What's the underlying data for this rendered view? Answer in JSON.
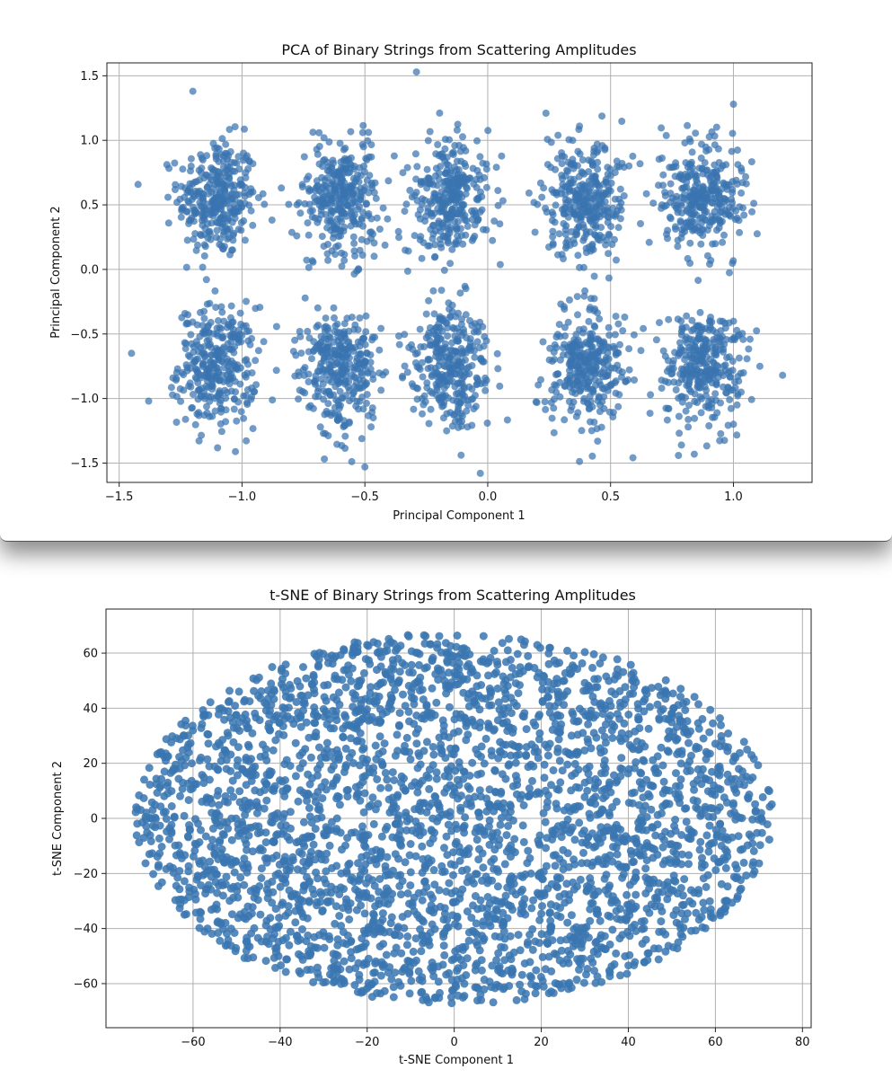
{
  "chart_data": [
    {
      "type": "scatter",
      "title": "PCA of Binary Strings from Scattering Amplitudes",
      "xlabel": "Principal Component 1",
      "ylabel": "Principal Component 2",
      "xlim": [
        -1.55,
        1.32
      ],
      "ylim": [
        -1.65,
        1.6
      ],
      "xticks": [
        -1.5,
        -1.0,
        -0.5,
        0.0,
        0.5,
        1.0
      ],
      "xtick_labels": [
        "−1.5",
        "−1.0",
        "−0.5",
        "0.0",
        "0.5",
        "1.0"
      ],
      "yticks": [
        -1.5,
        -1.0,
        -0.5,
        0.0,
        0.5,
        1.0,
        1.5
      ],
      "ytick_labels": [
        "−1.5",
        "−1.0",
        "−0.5",
        "0.0",
        "0.5",
        "1.0",
        "1.5"
      ],
      "grid": true,
      "marker_color": "#3a75b0",
      "cluster_centers_x": [
        -1.1,
        -0.6,
        -0.15,
        0.4,
        0.87
      ],
      "cluster_centers_y": [
        0.55,
        -0.75
      ],
      "cluster_spread": [
        0.08,
        0.23
      ],
      "outliers": [
        [
          -0.29,
          1.53
        ],
        [
          -1.38,
          -1.02
        ],
        [
          -1.45,
          -0.65
        ],
        [
          1.2,
          -0.82
        ],
        [
          -0.5,
          -1.53
        ],
        [
          -0.03,
          -1.58
        ],
        [
          -1.2,
          1.38
        ],
        [
          1.0,
          1.28
        ]
      ]
    },
    {
      "type": "scatter",
      "title": "t-SNE of Binary Strings from Scattering Amplitudes",
      "xlabel": "t-SNE Component 1",
      "ylabel": "t-SNE Component 2",
      "xlim": [
        -80,
        82
      ],
      "ylim": [
        -76,
        76
      ],
      "xticks": [
        -60,
        -40,
        -20,
        0,
        20,
        40,
        60,
        80
      ],
      "xtick_labels": [
        "−60",
        "−40",
        "−20",
        "0",
        "20",
        "40",
        "60",
        "80"
      ],
      "yticks": [
        -60,
        -40,
        -20,
        0,
        20,
        40,
        60
      ],
      "ytick_labels": [
        "−60",
        "−40",
        "−20",
        "0",
        "20",
        "40",
        "60"
      ],
      "grid": true,
      "marker_color": "#3a75b0",
      "ellipse_center": [
        0,
        0
      ],
      "ellipse_semi_axes": [
        74,
        68
      ]
    }
  ]
}
